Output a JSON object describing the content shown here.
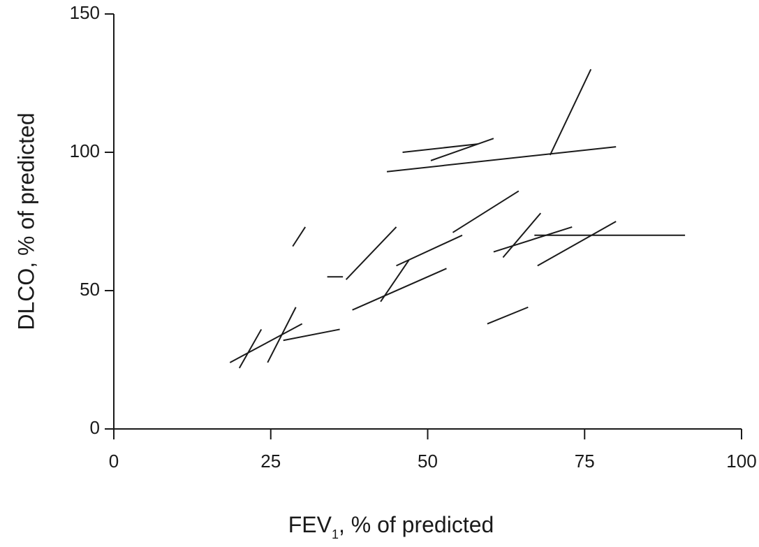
{
  "chart_data": {
    "type": "line",
    "title": "",
    "xlabel_main": "FEV",
    "xlabel_sub": "1",
    "xlabel_rest": ", % of predicted",
    "ylabel": "DLCO, % of predicted",
    "xlim": [
      0,
      100
    ],
    "ylim": [
      0,
      150
    ],
    "xticks": [
      0,
      25,
      50,
      75,
      100
    ],
    "yticks": [
      0,
      50,
      100,
      150
    ],
    "grid": false,
    "legend": "none",
    "color": "#1a1a1a",
    "series": [
      {
        "points": [
          [
            18.5,
            24
          ],
          [
            30,
            38
          ]
        ]
      },
      {
        "points": [
          [
            20,
            22
          ],
          [
            23.5,
            36
          ]
        ]
      },
      {
        "points": [
          [
            24.5,
            24
          ],
          [
            29,
            44
          ]
        ]
      },
      {
        "points": [
          [
            27,
            32
          ],
          [
            36,
            36
          ]
        ]
      },
      {
        "points": [
          [
            28.5,
            66
          ],
          [
            30.5,
            73
          ]
        ]
      },
      {
        "points": [
          [
            34,
            55
          ],
          [
            36.5,
            55
          ]
        ]
      },
      {
        "points": [
          [
            37,
            54
          ],
          [
            45,
            73
          ]
        ]
      },
      {
        "points": [
          [
            38,
            43
          ],
          [
            53,
            58
          ]
        ]
      },
      {
        "points": [
          [
            42.5,
            46
          ],
          [
            47,
            61
          ]
        ]
      },
      {
        "points": [
          [
            45,
            59
          ],
          [
            55.5,
            70
          ]
        ]
      },
      {
        "points": [
          [
            43.5,
            93
          ],
          [
            80,
            102
          ]
        ]
      },
      {
        "points": [
          [
            46,
            100
          ],
          [
            58,
            103
          ]
        ]
      },
      {
        "points": [
          [
            50.5,
            97
          ],
          [
            60.5,
            105
          ]
        ]
      },
      {
        "points": [
          [
            54,
            71
          ],
          [
            64.5,
            86
          ]
        ]
      },
      {
        "points": [
          [
            59.5,
            38
          ],
          [
            66,
            44
          ]
        ]
      },
      {
        "points": [
          [
            60.5,
            64
          ],
          [
            73,
            73
          ]
        ]
      },
      {
        "points": [
          [
            62,
            62
          ],
          [
            68,
            78
          ]
        ]
      },
      {
        "points": [
          [
            67,
            70
          ],
          [
            91,
            70
          ]
        ]
      },
      {
        "points": [
          [
            67.5,
            59
          ],
          [
            80,
            75
          ]
        ]
      },
      {
        "points": [
          [
            69.5,
            99
          ],
          [
            76,
            130
          ]
        ]
      }
    ]
  }
}
